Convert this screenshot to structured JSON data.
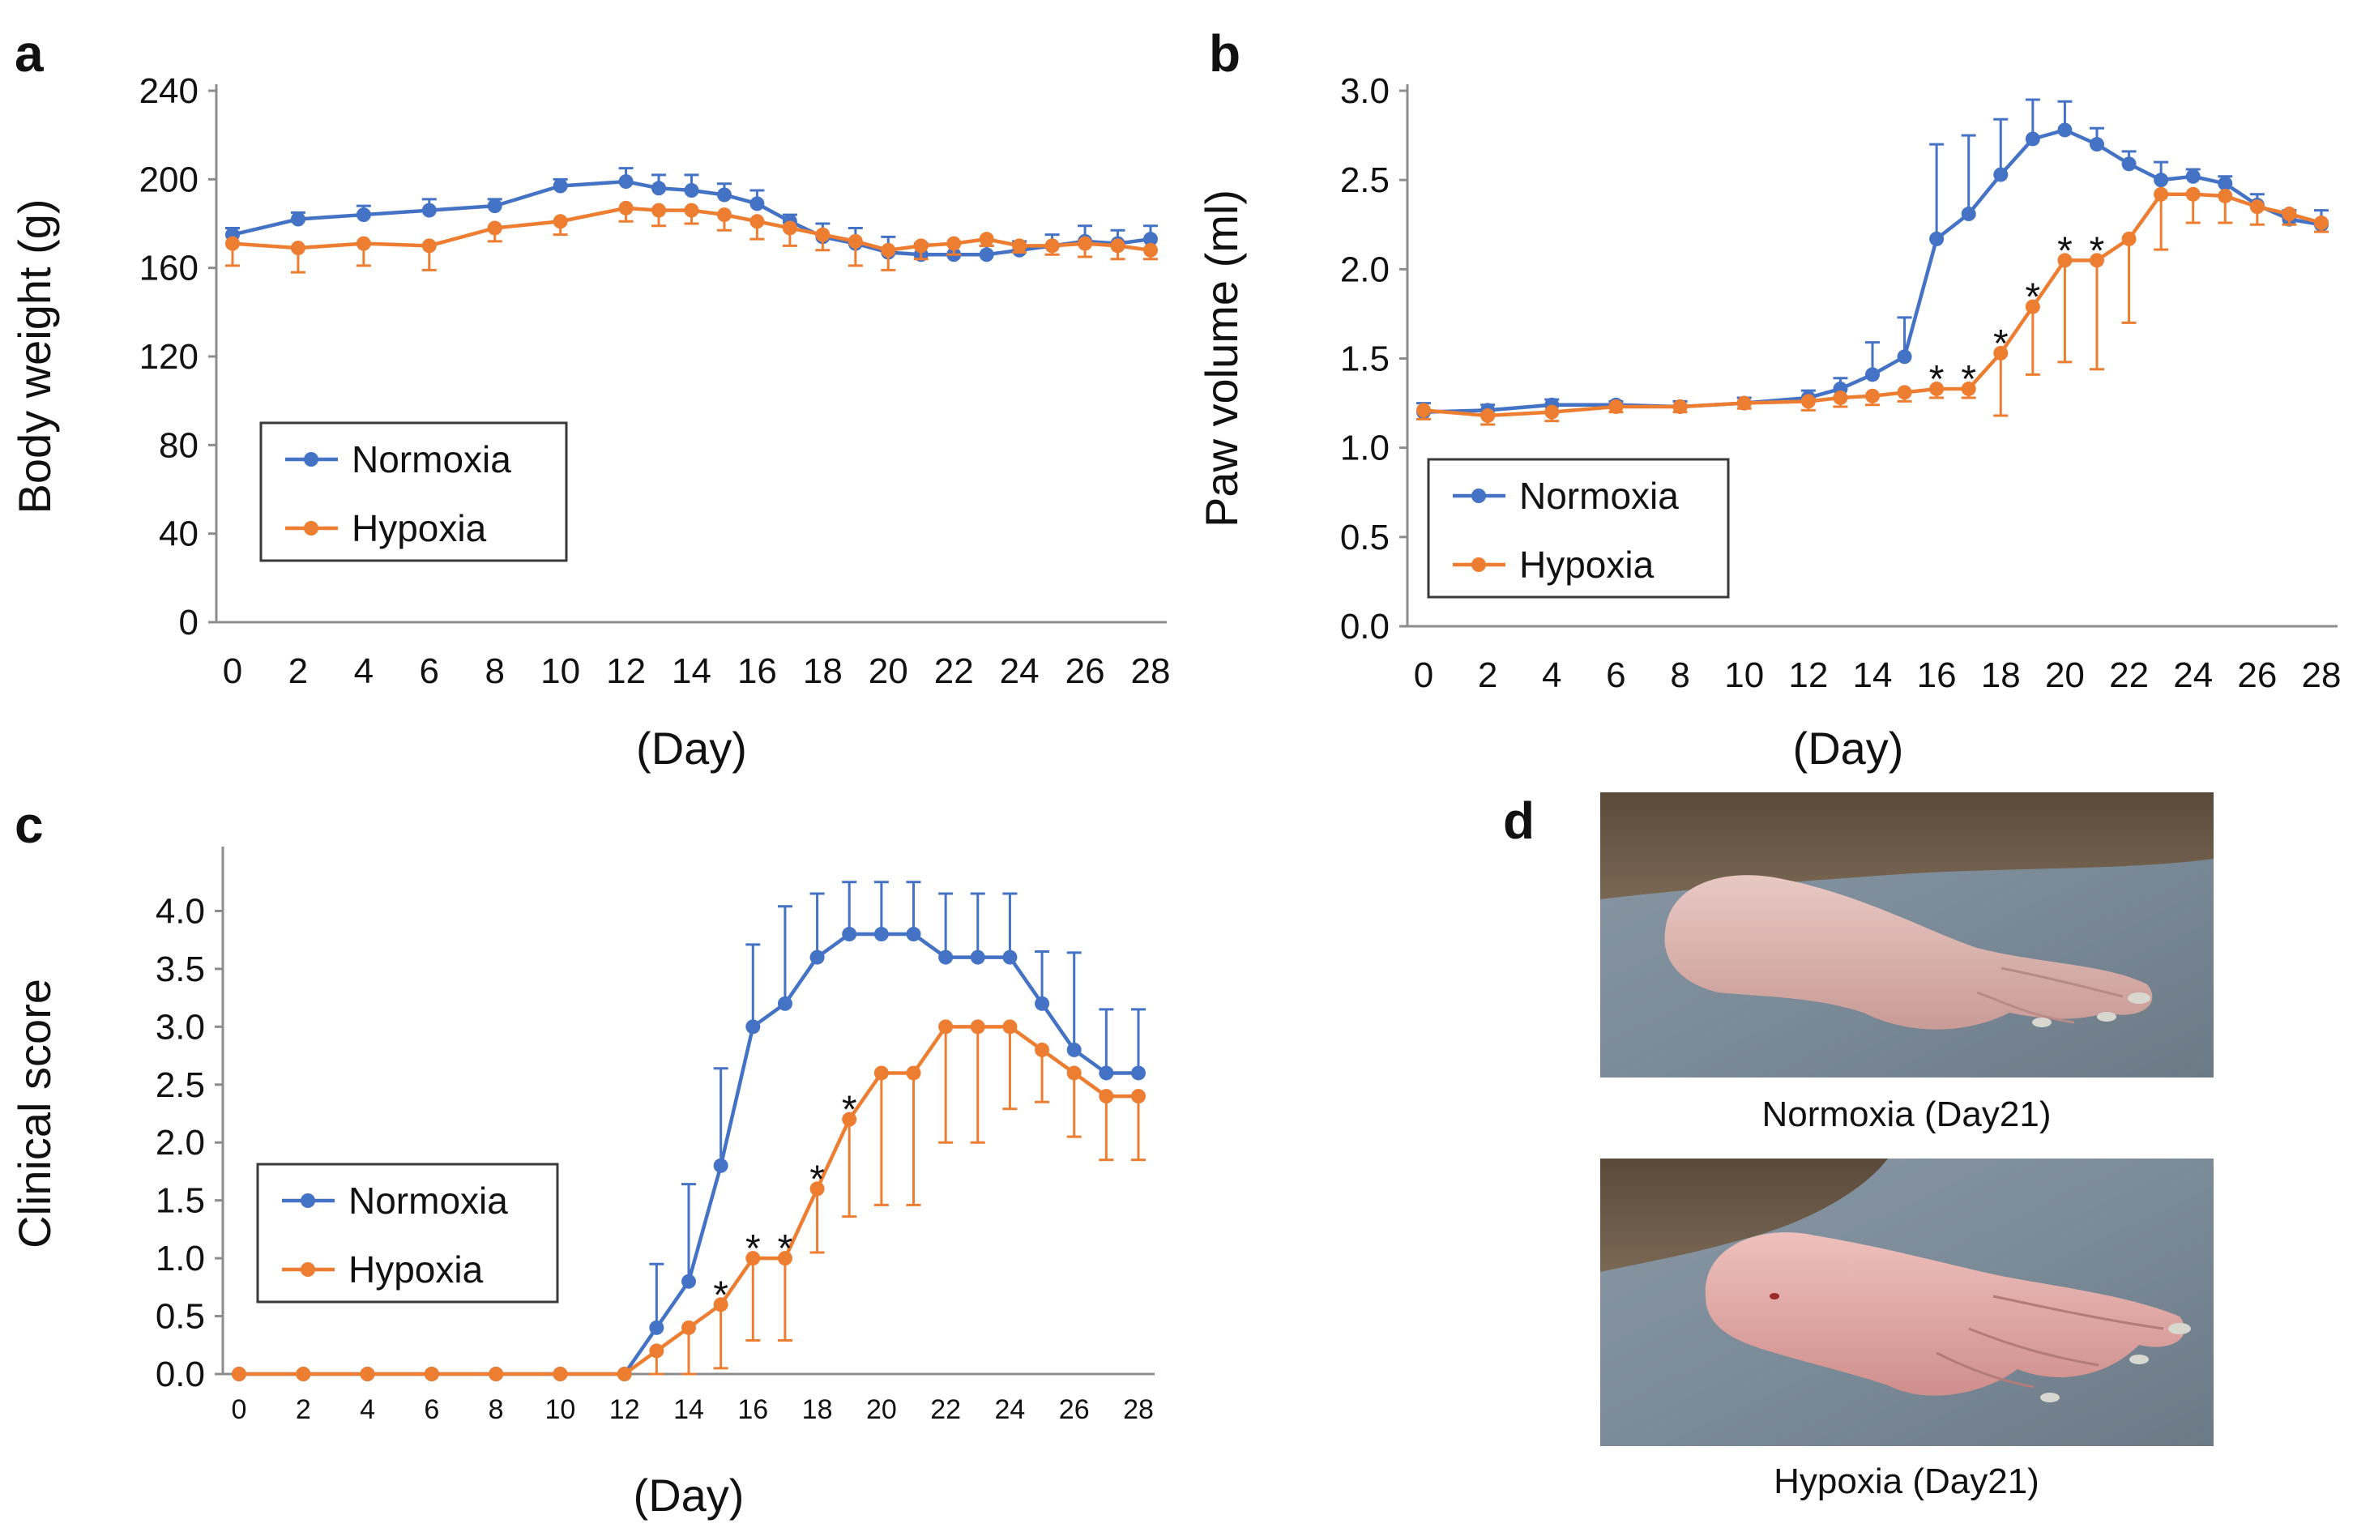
{
  "figure": {
    "colors": {
      "normoxia": "#4472C4",
      "hypoxia": "#ED7D31",
      "axis": "#8C8C8C",
      "text": "#111111"
    },
    "photos": {
      "letter": "d",
      "normoxia_caption": "Normoxia (Day21)",
      "hypoxia_caption": "Hypoxia (Day21)"
    }
  },
  "chart_data": [
    {
      "letter": "a",
      "type": "line",
      "title": "",
      "xlabel": "(Day)",
      "ylabel": "Body weight (g)",
      "xlim": [
        0,
        28
      ],
      "ylim": [
        0,
        240
      ],
      "xticks": [
        "0",
        "2",
        "4",
        "6",
        "8",
        "10",
        "12",
        "14",
        "16",
        "18",
        "20",
        "22",
        "24",
        "26",
        "28"
      ],
      "yticks": [
        "0",
        "40",
        "80",
        "120",
        "160",
        "200",
        "240"
      ],
      "grid": false,
      "legend": "lower-left",
      "series": [
        {
          "name": "Normoxia",
          "x": [
            0,
            2,
            4,
            6,
            8,
            10,
            12,
            13,
            14,
            15,
            16,
            17,
            18,
            19,
            20,
            21,
            22,
            23,
            24,
            25,
            26,
            27,
            28
          ],
          "y": [
            175,
            182,
            184,
            186,
            188,
            197,
            199,
            196,
            195,
            193,
            189,
            181,
            174,
            171,
            167,
            166,
            166,
            166,
            168,
            170,
            172,
            171,
            173
          ],
          "err": [
            3,
            3,
            4,
            5,
            3,
            3,
            6,
            6,
            7,
            5,
            6,
            3,
            6,
            7,
            7,
            5,
            5,
            4,
            4,
            5,
            7,
            6,
            6
          ]
        },
        {
          "name": "Hypoxia",
          "x": [
            0,
            2,
            4,
            6,
            8,
            10,
            12,
            13,
            14,
            15,
            16,
            17,
            18,
            19,
            20,
            21,
            22,
            23,
            24,
            25,
            26,
            27,
            28
          ],
          "y": [
            171,
            169,
            171,
            170,
            178,
            181,
            187,
            186,
            186,
            184,
            181,
            178,
            175,
            172,
            168,
            170,
            171,
            173,
            170,
            170,
            171,
            170,
            168
          ],
          "err": [
            10,
            11,
            10,
            11,
            6,
            6,
            6,
            7,
            6,
            7,
            8,
            8,
            7,
            11,
            9,
            6,
            5,
            3,
            3,
            4,
            6,
            6,
            4
          ]
        }
      ],
      "stars": []
    },
    {
      "letter": "b",
      "type": "line",
      "title": "",
      "xlabel": "(Day)",
      "ylabel": "Paw volume (ml)",
      "xlim": [
        0,
        28
      ],
      "ylim": [
        0,
        3
      ],
      "xticks": [
        "0",
        "2",
        "4",
        "6",
        "8",
        "10",
        "12",
        "14",
        "16",
        "18",
        "20",
        "22",
        "24",
        "26",
        "28"
      ],
      "yticks": [
        "0.0",
        "0.5",
        "1.0",
        "1.5",
        "2.0",
        "2.5",
        "3.0"
      ],
      "grid": false,
      "legend": "lower-left",
      "series": [
        {
          "name": "Normoxia",
          "x": [
            0,
            2,
            4,
            6,
            8,
            10,
            12,
            13,
            14,
            15,
            16,
            17,
            18,
            19,
            20,
            21,
            22,
            23,
            24,
            25,
            26,
            27,
            28
          ],
          "y": [
            1.2,
            1.21,
            1.24,
            1.24,
            1.23,
            1.25,
            1.28,
            1.33,
            1.41,
            1.51,
            2.17,
            2.31,
            2.53,
            2.73,
            2.78,
            2.7,
            2.59,
            2.5,
            2.52,
            2.48,
            2.36,
            2.28,
            2.25
          ],
          "err": [
            0.05,
            0.03,
            0.03,
            0.02,
            0.03,
            0.03,
            0.04,
            0.06,
            0.18,
            0.22,
            0.53,
            0.44,
            0.31,
            0.22,
            0.16,
            0.09,
            0.07,
            0.1,
            0.04,
            0.04,
            0.06,
            0.05,
            0.08
          ]
        },
        {
          "name": "Hypoxia",
          "x": [
            0,
            2,
            4,
            6,
            8,
            10,
            12,
            13,
            14,
            15,
            16,
            17,
            18,
            19,
            20,
            21,
            22,
            23,
            24,
            25,
            26,
            27,
            28
          ],
          "y": [
            1.21,
            1.18,
            1.2,
            1.23,
            1.23,
            1.25,
            1.26,
            1.28,
            1.29,
            1.31,
            1.33,
            1.33,
            1.53,
            1.79,
            2.05,
            2.05,
            2.17,
            2.42,
            2.42,
            2.41,
            2.35,
            2.31,
            2.26
          ],
          "err": [
            0.05,
            0.05,
            0.05,
            0.03,
            0.03,
            0.03,
            0.05,
            0.05,
            0.05,
            0.05,
            0.05,
            0.05,
            0.35,
            0.38,
            0.57,
            0.61,
            0.47,
            0.31,
            0.16,
            0.15,
            0.1,
            0.06,
            0.05
          ]
        }
      ],
      "stars": [
        {
          "x": 16,
          "text": "*"
        },
        {
          "x": 17,
          "text": "*"
        },
        {
          "x": 18,
          "text": "*"
        },
        {
          "x": 19,
          "text": "*"
        },
        {
          "x": 20,
          "text": "*"
        },
        {
          "x": 21,
          "text": "*"
        }
      ]
    },
    {
      "letter": "c",
      "type": "line",
      "title": "",
      "xlabel": "(Day)",
      "ylabel": "Clinical score",
      "xlim": [
        0,
        28
      ],
      "ylim": [
        0,
        4.5
      ],
      "xticks": [
        "0",
        "2",
        "4",
        "6",
        "8",
        "10",
        "12",
        "14",
        "16",
        "18",
        "20",
        "22",
        "24",
        "26",
        "28"
      ],
      "yticks": [
        "0.0",
        "0.5",
        "1.0",
        "1.5",
        "2.0",
        "2.5",
        "3.0",
        "3.5",
        "4.0"
      ],
      "grid": false,
      "legend": "lower-left",
      "series": [
        {
          "name": "Normoxia",
          "x": [
            0,
            2,
            4,
            6,
            8,
            10,
            12,
            13,
            14,
            15,
            16,
            17,
            18,
            19,
            20,
            21,
            22,
            23,
            24,
            25,
            26,
            27,
            28
          ],
          "y": [
            0,
            0,
            0,
            0,
            0,
            0,
            0,
            0.4,
            0.8,
            1.8,
            3.0,
            3.2,
            3.6,
            3.8,
            3.8,
            3.8,
            3.6,
            3.6,
            3.6,
            3.2,
            2.8,
            2.6,
            2.6
          ],
          "err": [
            0,
            0,
            0,
            0,
            0,
            0,
            0,
            0.55,
            0.84,
            0.84,
            0.71,
            0.84,
            0.55,
            0.45,
            0.45,
            0.45,
            0.55,
            0.55,
            0.55,
            0.45,
            0.84,
            0.55,
            0.55
          ]
        },
        {
          "name": "Hypoxia",
          "x": [
            0,
            2,
            4,
            6,
            8,
            10,
            12,
            13,
            14,
            15,
            16,
            17,
            18,
            19,
            20,
            21,
            22,
            23,
            24,
            25,
            26,
            27,
            28
          ],
          "y": [
            0,
            0,
            0,
            0,
            0,
            0,
            0,
            0.2,
            0.4,
            0.6,
            1.0,
            1.0,
            1.6,
            2.2,
            2.6,
            2.6,
            3.0,
            3.0,
            3.0,
            2.8,
            2.6,
            2.4,
            2.4
          ],
          "err": [
            0,
            0,
            0,
            0,
            0,
            0,
            0,
            0.2,
            0.4,
            0.55,
            0.71,
            0.71,
            0.55,
            0.84,
            1.14,
            1.14,
            1.0,
            1.0,
            0.71,
            0.45,
            0.55,
            0.55,
            0.55
          ]
        }
      ],
      "stars": [
        {
          "x": 15,
          "text": "*"
        },
        {
          "x": 16,
          "text": "*"
        },
        {
          "x": 17,
          "text": "*"
        },
        {
          "x": 18,
          "text": "*"
        },
        {
          "x": 19,
          "text": "*"
        }
      ]
    }
  ]
}
